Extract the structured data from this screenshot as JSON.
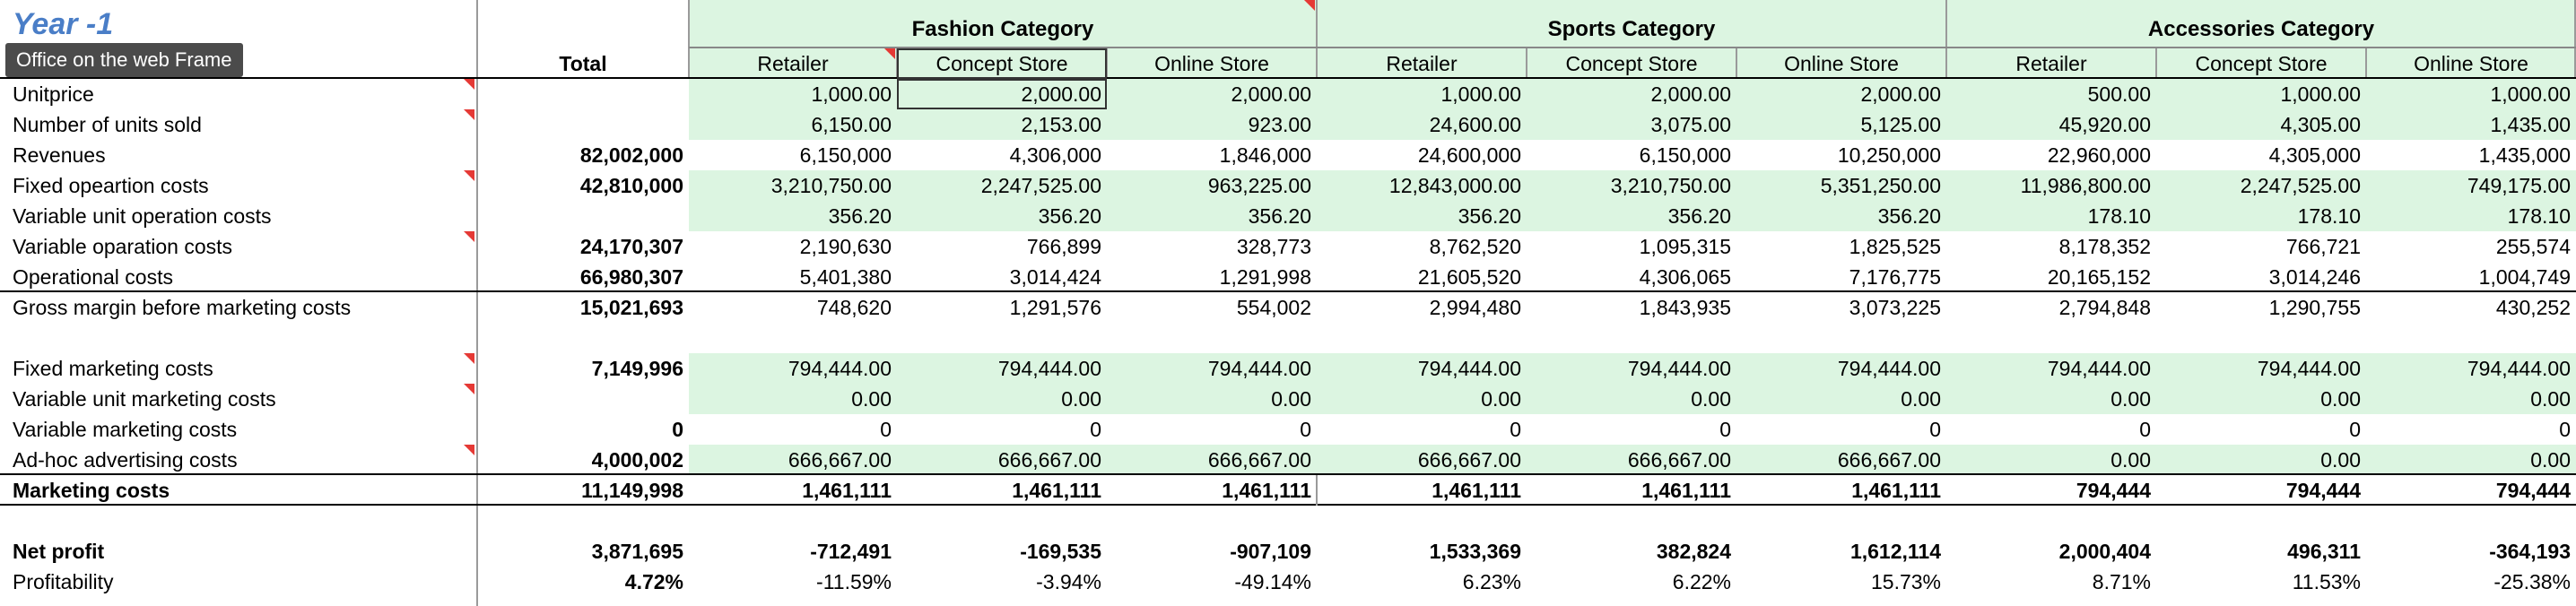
{
  "sheet_title": "Year -1",
  "tooltip": "Office on the web Frame",
  "total_header": "Total",
  "categories": [
    "Fashion Category",
    "Sports Category",
    "Accessories Category"
  ],
  "channels": [
    "Retailer",
    "Concept Store",
    "Online Store"
  ],
  "rows": [
    {
      "label": "Unitprice",
      "total": "",
      "bold": false,
      "green": true,
      "values": [
        "1,000.00",
        "2,000.00",
        "2,000.00",
        "1,000.00",
        "2,000.00",
        "2,000.00",
        "500.00",
        "1,000.00",
        "1,000.00"
      ]
    },
    {
      "label": "Number of units sold",
      "total": "",
      "bold": false,
      "green": true,
      "values": [
        "6,150.00",
        "2,153.00",
        "923.00",
        "24,600.00",
        "3,075.00",
        "5,125.00",
        "45,920.00",
        "4,305.00",
        "1,435.00"
      ]
    },
    {
      "label": "Revenues",
      "total": "82,002,000",
      "bold": false,
      "green": false,
      "values": [
        "6,150,000",
        "4,306,000",
        "1,846,000",
        "24,600,000",
        "6,150,000",
        "10,250,000",
        "22,960,000",
        "4,305,000",
        "1,435,000"
      ]
    },
    {
      "label": "Fixed opeartion costs",
      "total": "42,810,000",
      "bold": false,
      "green": true,
      "values": [
        "3,210,750.00",
        "2,247,525.00",
        "963,225.00",
        "12,843,000.00",
        "3,210,750.00",
        "5,351,250.00",
        "11,986,800.00",
        "2,247,525.00",
        "749,175.00"
      ]
    },
    {
      "label": "Variable unit operation costs",
      "total": "",
      "bold": false,
      "green": true,
      "values": [
        "356.20",
        "356.20",
        "356.20",
        "356.20",
        "356.20",
        "356.20",
        "178.10",
        "178.10",
        "178.10"
      ]
    },
    {
      "label": "Variable oparation costs",
      "total": "24,170,307",
      "bold": false,
      "green": false,
      "values": [
        "2,190,630",
        "766,899",
        "328,773",
        "8,762,520",
        "1,095,315",
        "1,825,525",
        "8,178,352",
        "766,721",
        "255,574"
      ]
    },
    {
      "label": "Operational costs",
      "total": "66,980,307",
      "bold": false,
      "green": false,
      "values": [
        "5,401,380",
        "3,014,424",
        "1,291,998",
        "21,605,520",
        "4,306,065",
        "7,176,775",
        "20,165,152",
        "3,014,246",
        "1,004,749"
      ]
    },
    {
      "label": "Gross margin before marketing costs",
      "total": "15,021,693",
      "bold": false,
      "green": false,
      "values": [
        "748,620",
        "1,291,576",
        "554,002",
        "2,994,480",
        "1,843,935",
        "3,073,225",
        "2,794,848",
        "1,290,755",
        "430,252"
      ]
    },
    {
      "label": "",
      "total": "",
      "bold": false,
      "green": false,
      "values": [
        "",
        "",
        "",
        "",
        "",
        "",
        "",
        "",
        ""
      ]
    },
    {
      "label": "Fixed marketing costs",
      "total": "7,149,996",
      "bold": false,
      "green": true,
      "values": [
        "794,444.00",
        "794,444.00",
        "794,444.00",
        "794,444.00",
        "794,444.00",
        "794,444.00",
        "794,444.00",
        "794,444.00",
        "794,444.00"
      ]
    },
    {
      "label": "Variable unit marketing costs",
      "total": "",
      "bold": false,
      "green": true,
      "values": [
        "0.00",
        "0.00",
        "0.00",
        "0.00",
        "0.00",
        "0.00",
        "0.00",
        "0.00",
        "0.00"
      ]
    },
    {
      "label": "Variable marketing costs",
      "total": "0",
      "bold": false,
      "green": false,
      "values": [
        "0",
        "0",
        "0",
        "0",
        "0",
        "0",
        "0",
        "0",
        "0"
      ]
    },
    {
      "label": "Ad-hoc advertising costs",
      "total": "4,000,002",
      "bold": false,
      "green": true,
      "values": [
        "666,667.00",
        "666,667.00",
        "666,667.00",
        "666,667.00",
        "666,667.00",
        "666,667.00",
        "0.00",
        "0.00",
        "0.00"
      ]
    },
    {
      "label": "Marketing costs",
      "total": "11,149,998",
      "bold": true,
      "green": false,
      "values": [
        "1,461,111",
        "1,461,111",
        "1,461,111",
        "1,461,111",
        "1,461,111",
        "1,461,111",
        "794,444",
        "794,444",
        "794,444"
      ]
    },
    {
      "label": "",
      "total": "",
      "bold": false,
      "green": false,
      "values": [
        "",
        "",
        "",
        "",
        "",
        "",
        "",
        "",
        ""
      ]
    },
    {
      "label": "Net profit",
      "total": "3,871,695",
      "bold": true,
      "green": false,
      "values": [
        "-712,491",
        "-169,535",
        "-907,109",
        "1,533,369",
        "382,824",
        "1,612,114",
        "2,000,404",
        "496,311",
        "-364,193"
      ]
    },
    {
      "label": "Profitability",
      "total": "4.72%",
      "bold": false,
      "green": false,
      "values": [
        "-11.59%",
        "-3.94%",
        "-49.14%",
        "6.23%",
        "6.22%",
        "15.73%",
        "8.71%",
        "11.53%",
        "-25.38%"
      ]
    }
  ]
}
